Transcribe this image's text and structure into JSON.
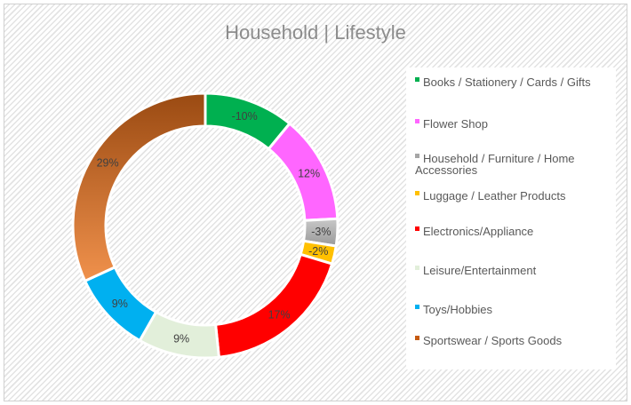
{
  "chart_data": {
    "type": "donut",
    "title": "Household | Lifestyle",
    "legend_position": "right",
    "categories": [
      "Books / Stationery / Cards / Gifts",
      "Flower Shop",
      "Household / Furniture / Home Accessories",
      "Luggage / Leather Products",
      "Electronics/Appliance",
      "Leisure/Entertainment",
      "Toys/Hobbies",
      "Sportswear / Sports Goods"
    ],
    "values": [
      -10,
      12,
      -3,
      -2,
      17,
      9,
      9,
      29
    ],
    "labels": [
      "-10%",
      "12%",
      "-3%",
      "-2%",
      "17%",
      "9%",
      "9%",
      "29%"
    ],
    "colors": [
      "#00b050",
      "#ff66ff",
      "#a6a6a6",
      "#ffc000",
      "#ff0000",
      "#e2efda",
      "#00b0f0",
      "#c55a11"
    ]
  }
}
